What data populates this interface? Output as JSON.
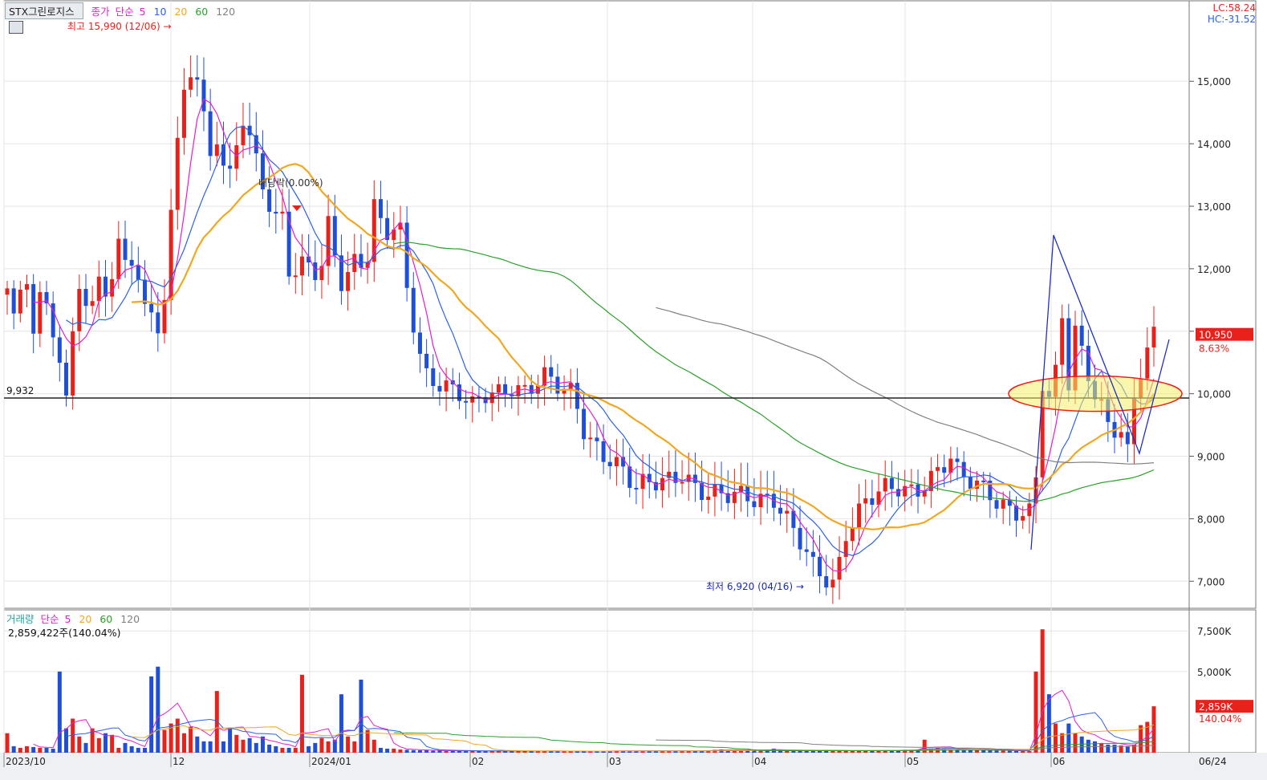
{
  "header": {
    "symbol": "STX그린로지스",
    "close_label": "종가",
    "ma_type": "단순",
    "ma_periods": [
      "5",
      "10",
      "20",
      "60",
      "120"
    ],
    "lc": "LC:58.24",
    "hc": "HC:-31.52"
  },
  "volume_header": {
    "title": "거래량",
    "ma_type": "단순",
    "ma_periods": [
      "5",
      "20",
      "60",
      "120"
    ],
    "summary": "2,859,422주(140.04%)"
  },
  "annotations": {
    "high": "최고 15,990 (12/06)",
    "low": "최저 6,920 (04/16)",
    "dividend": "배당락(0.00%)",
    "ref_level": "9,932",
    "current_price": "10,950",
    "current_change": "8.63%",
    "current_volume": "2,859K",
    "current_volume_pct": "140.04%"
  },
  "colors": {
    "up": "#e8221b",
    "down": "#1f4fd6",
    "ma5": "#e020d0",
    "ma10": "#2a62e0",
    "ma20": "#f0a820",
    "ma60": "#2aa02a",
    "ma120": "#808080",
    "highlight_fill": "#f4ee6a",
    "highlight_stroke": "#e8221b"
  },
  "chart_data": {
    "type": "candlestick",
    "price_axis": {
      "ylim": [
        6580,
        16300
      ],
      "ticks": [
        "7,000",
        "8,000",
        "9,000",
        "10,000",
        "11,000",
        "12,000",
        "13,000",
        "14,000",
        "15,000"
      ],
      "tick_values": [
        7000,
        8000,
        9000,
        10000,
        11000,
        12000,
        13000,
        14000,
        15000
      ]
    },
    "volume_axis": {
      "ylim": [
        0,
        8500
      ],
      "unit": "K",
      "ticks": [
        "5,000K",
        "7,500K"
      ],
      "tick_values": [
        5000,
        7500
      ]
    },
    "x_labels": [
      "2023/10",
      "12",
      "2024/01",
      "02",
      "03",
      "04",
      "05",
      "06",
      "06/24"
    ],
    "reference_line": 9932,
    "volume_values_k": [
      1200,
      400,
      300,
      400,
      350,
      300,
      300,
      250,
      5000,
      1500,
      2100,
      1000,
      600,
      1500,
      900,
      1200,
      1100,
      300,
      600,
      400,
      300,
      300,
      4700,
      5300,
      1400,
      1800,
      2100,
      1200,
      1600,
      1000,
      700,
      700,
      3800,
      700,
      1500,
      1100,
      800,
      900,
      600,
      1000,
      500,
      400,
      300,
      300,
      300,
      4800,
      400,
      600,
      900,
      700,
      800,
      3600,
      1000,
      700,
      4500,
      1400,
      800,
      300,
      250,
      250,
      200,
      180,
      160,
      150,
      150,
      120,
      130,
      100,
      110,
      120,
      100,
      110,
      100,
      100,
      100,
      120,
      100,
      100,
      90,
      100,
      100,
      110,
      100,
      110,
      90,
      100,
      90,
      90,
      100,
      100,
      100,
      110,
      110,
      120,
      100,
      100,
      110,
      120,
      110,
      120,
      110,
      120,
      100,
      100,
      120,
      110,
      130,
      150,
      180,
      200,
      150,
      150,
      140,
      150,
      200,
      160,
      180,
      250,
      130,
      150,
      120,
      130,
      130,
      140,
      130,
      150,
      150,
      130,
      130,
      140,
      120,
      120,
      150,
      130,
      140,
      150,
      160,
      180,
      180,
      200,
      800,
      250,
      300,
      240,
      220,
      200,
      180,
      160,
      180,
      150,
      150,
      140,
      130,
      120,
      110,
      100,
      100,
      5000,
      7600,
      3600,
      1800,
      1200,
      1800,
      1200,
      1000,
      800,
      700,
      600,
      500,
      500,
      450,
      400,
      500,
      1700,
      1900,
      2859
    ],
    "series": [
      {
        "name": "5",
        "label_shown": true
      },
      {
        "name": "10",
        "label_shown": true
      },
      {
        "name": "20",
        "label_shown": true
      },
      {
        "name": "60",
        "label_shown": true
      },
      {
        "name": "120",
        "label_shown": true
      }
    ]
  }
}
